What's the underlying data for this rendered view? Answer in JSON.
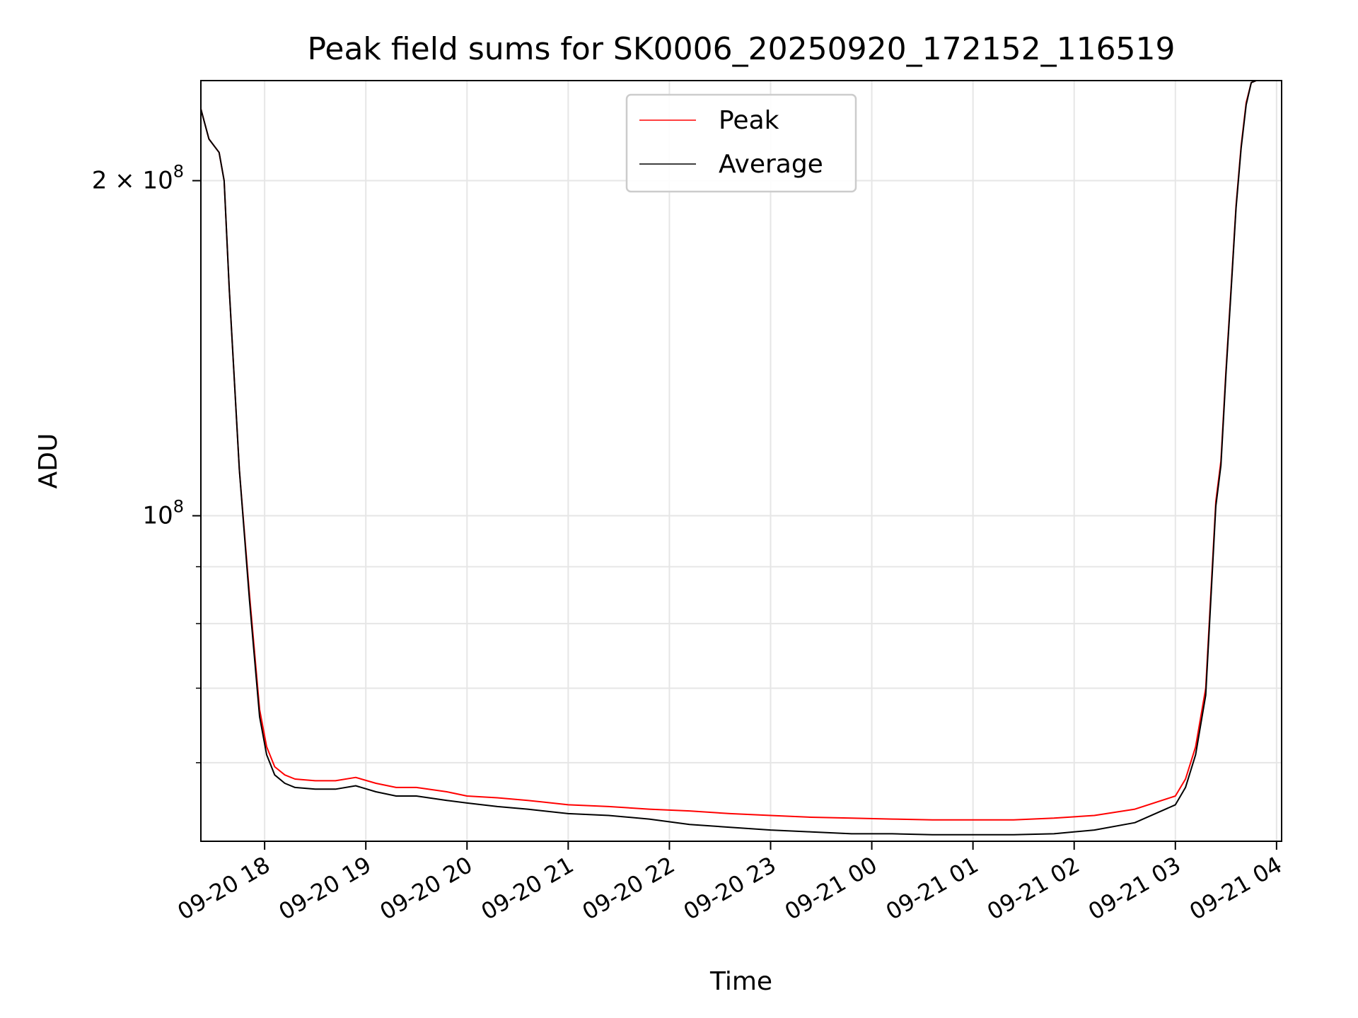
{
  "chart_data": {
    "type": "line",
    "title": "Peak field sums for SK0006_20250920_172152_116519",
    "xlabel": "Time",
    "ylabel": "ADU",
    "yscale": "log",
    "grid": true,
    "legend_position": "top-center",
    "x_hours_range": [
      17.37,
      28.05
    ],
    "ylim": [
      51000000,
      246000000
    ],
    "x_ticks": [
      {
        "hours": 18,
        "label": "09-20 18"
      },
      {
        "hours": 19,
        "label": "09-20 19"
      },
      {
        "hours": 20,
        "label": "09-20 20"
      },
      {
        "hours": 21,
        "label": "09-20 21"
      },
      {
        "hours": 22,
        "label": "09-20 22"
      },
      {
        "hours": 23,
        "label": "09-20 23"
      },
      {
        "hours": 24,
        "label": "09-21 00"
      },
      {
        "hours": 25,
        "label": "09-21 01"
      },
      {
        "hours": 26,
        "label": "09-21 02"
      },
      {
        "hours": 27,
        "label": "09-21 03"
      },
      {
        "hours": 28,
        "label": "09-21 04"
      }
    ],
    "y_major_ticks": [
      {
        "value": 100000000,
        "base": "10",
        "exp": "8"
      },
      {
        "value": 200000000,
        "base": "2 × 10",
        "exp": "8"
      }
    ],
    "y_minor_ticks": [
      60000000,
      70000000,
      80000000,
      90000000
    ],
    "series": [
      {
        "name": "Peak",
        "color": "#ff0000",
        "x": [
          17.37,
          17.45,
          17.55,
          17.6,
          17.65,
          17.75,
          17.85,
          17.95,
          18.02,
          18.1,
          18.2,
          18.3,
          18.5,
          18.7,
          18.9,
          19.1,
          19.3,
          19.5,
          19.8,
          20.0,
          20.3,
          20.6,
          21.0,
          21.4,
          21.8,
          22.2,
          22.6,
          23.0,
          23.4,
          23.8,
          24.2,
          24.6,
          25.0,
          25.4,
          25.8,
          26.2,
          26.6,
          27.0,
          27.1,
          27.2,
          27.3,
          27.35,
          27.4,
          27.45,
          27.5,
          27.55,
          27.6,
          27.65,
          27.7,
          27.75,
          27.8,
          27.85,
          27.9,
          27.95,
          28.05
        ],
        "y": [
          232000000,
          218000000,
          212000000,
          200000000,
          160000000,
          110000000,
          85000000,
          67000000,
          62000000,
          59500000,
          58500000,
          58000000,
          57800000,
          57800000,
          58200000,
          57500000,
          57000000,
          57000000,
          56500000,
          56000000,
          55800000,
          55500000,
          55000000,
          54800000,
          54500000,
          54300000,
          54000000,
          53800000,
          53600000,
          53500000,
          53400000,
          53300000,
          53300000,
          53300000,
          53500000,
          53800000,
          54500000,
          56000000,
          58000000,
          62000000,
          70000000,
          85000000,
          103000000,
          112000000,
          135000000,
          160000000,
          190000000,
          215000000,
          235000000,
          245000000,
          246000000,
          246000000,
          246000000,
          246000000,
          246000000
        ]
      },
      {
        "name": "Average",
        "color": "#000000",
        "x": [
          17.37,
          17.45,
          17.55,
          17.6,
          17.65,
          17.75,
          17.85,
          17.95,
          18.02,
          18.1,
          18.2,
          18.3,
          18.5,
          18.7,
          18.9,
          19.1,
          19.3,
          19.5,
          19.8,
          20.0,
          20.3,
          20.6,
          21.0,
          21.4,
          21.8,
          22.2,
          22.6,
          23.0,
          23.4,
          23.8,
          24.2,
          24.6,
          25.0,
          25.4,
          25.8,
          26.2,
          26.6,
          27.0,
          27.1,
          27.2,
          27.3,
          27.35,
          27.4,
          27.45,
          27.5,
          27.55,
          27.6,
          27.65,
          27.7,
          27.75,
          27.8,
          27.85,
          27.9,
          27.95,
          28.05
        ],
        "y": [
          232000000,
          218000000,
          212000000,
          200000000,
          160000000,
          110000000,
          84000000,
          66000000,
          61000000,
          58500000,
          57500000,
          57000000,
          56800000,
          56800000,
          57200000,
          56500000,
          56000000,
          56000000,
          55500000,
          55200000,
          54800000,
          54500000,
          54000000,
          53800000,
          53400000,
          52800000,
          52500000,
          52200000,
          52000000,
          51800000,
          51800000,
          51700000,
          51700000,
          51700000,
          51800000,
          52200000,
          53000000,
          55000000,
          57000000,
          61000000,
          69000000,
          84000000,
          102000000,
          111000000,
          134000000,
          159000000,
          189000000,
          214000000,
          234000000,
          245000000,
          246000000,
          246000000,
          246000000,
          246000000,
          246000000
        ]
      }
    ]
  }
}
